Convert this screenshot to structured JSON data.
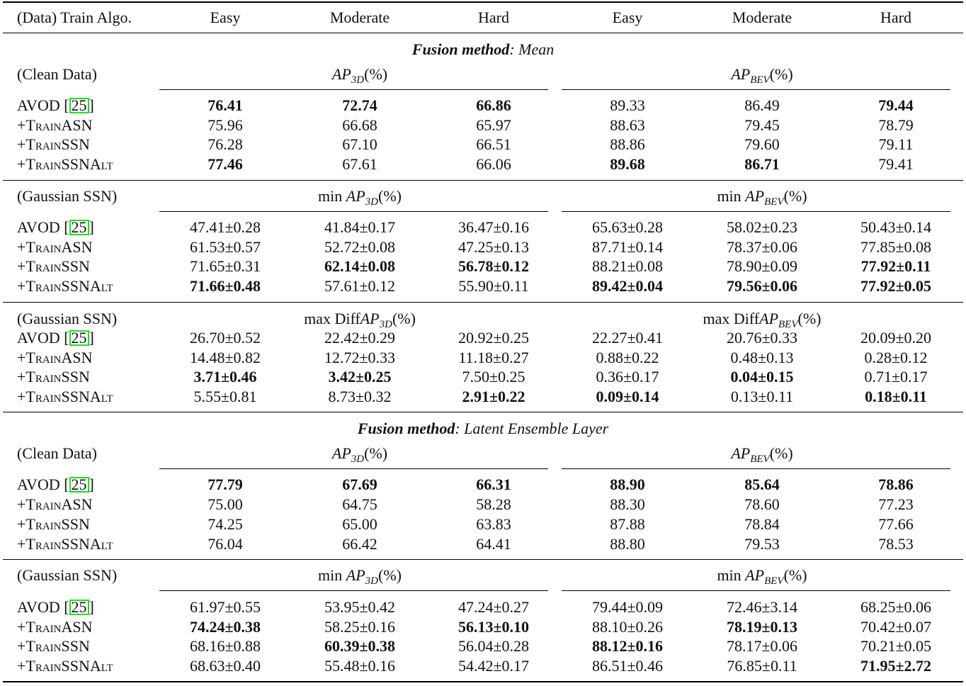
{
  "header": {
    "first_col": "(Data) Train Algo.",
    "columns": [
      "Easy",
      "Moderate",
      "Hard",
      "Easy",
      "Moderate",
      "Hard"
    ]
  },
  "sections": [
    {
      "fusion_label": "Fusion method",
      "fusion_value": ": Mean",
      "blocks": [
        {
          "block_label": "(Clean Data)",
          "left_metric": {
            "prefix": "",
            "name": "AP",
            "sub": "3D",
            "suffix": "(%)"
          },
          "right_metric": {
            "prefix": "",
            "name": "AP",
            "sub": "BEV",
            "suffix": "(%)"
          },
          "rows": [
            {
              "method": "AVOD",
              "cite": "25",
              "sc": false,
              "cells": [
                [
                  "76.41",
                  1
                ],
                [
                  "72.74",
                  1
                ],
                [
                  "66.86",
                  1
                ],
                [
                  "89.33",
                  0
                ],
                [
                  "86.49",
                  0
                ],
                [
                  "79.44",
                  1
                ]
              ]
            },
            {
              "method": "+TrainASN",
              "cite": "",
              "sc": true,
              "cells": [
                [
                  "75.96",
                  0
                ],
                [
                  "66.68",
                  0
                ],
                [
                  "65.97",
                  0
                ],
                [
                  "88.63",
                  0
                ],
                [
                  "79.45",
                  0
                ],
                [
                  "78.79",
                  0
                ]
              ]
            },
            {
              "method": "+TrainSSN",
              "cite": "",
              "sc": true,
              "cells": [
                [
                  "76.28",
                  0
                ],
                [
                  "67.10",
                  0
                ],
                [
                  "66.51",
                  0
                ],
                [
                  "88.86",
                  0
                ],
                [
                  "79.60",
                  0
                ],
                [
                  "79.11",
                  0
                ]
              ]
            },
            {
              "method": "+TrainSSNAlt",
              "cite": "",
              "sc": true,
              "cells": [
                [
                  "77.46",
                  1
                ],
                [
                  "67.61",
                  0
                ],
                [
                  "66.06",
                  0
                ],
                [
                  "89.68",
                  1
                ],
                [
                  "86.71",
                  1
                ],
                [
                  "79.41",
                  0
                ]
              ]
            }
          ]
        },
        {
          "block_label": "(Gaussian SSN)",
          "left_metric": {
            "prefix": "min ",
            "name": "AP",
            "sub": "3D",
            "suffix": "(%)"
          },
          "right_metric": {
            "prefix": "min ",
            "name": "AP",
            "sub": "BEV",
            "suffix": "(%)"
          },
          "rows": [
            {
              "method": "AVOD",
              "cite": "25",
              "sc": false,
              "cells": [
                [
                  "47.41±0.28",
                  0
                ],
                [
                  "41.84±0.17",
                  0
                ],
                [
                  "36.47±0.16",
                  0
                ],
                [
                  "65.63±0.28",
                  0
                ],
                [
                  "58.02±0.23",
                  0
                ],
                [
                  "50.43±0.14",
                  0
                ]
              ]
            },
            {
              "method": "+TrainASN",
              "cite": "",
              "sc": true,
              "cells": [
                [
                  "61.53±0.57",
                  0
                ],
                [
                  "52.72±0.08",
                  0
                ],
                [
                  "47.25±0.13",
                  0
                ],
                [
                  "87.71±0.14",
                  0
                ],
                [
                  "78.37±0.06",
                  0
                ],
                [
                  "77.85±0.08",
                  0
                ]
              ]
            },
            {
              "method": "+TrainSSN",
              "cite": "",
              "sc": true,
              "cells": [
                [
                  "71.65±0.31",
                  0
                ],
                [
                  "62.14±0.08",
                  1
                ],
                [
                  "56.78±0.12",
                  1
                ],
                [
                  "88.21±0.08",
                  0
                ],
                [
                  "78.90±0.09",
                  0
                ],
                [
                  "77.92±0.11",
                  1
                ]
              ]
            },
            {
              "method": "+TrainSSNAlt",
              "cite": "",
              "sc": true,
              "cells": [
                [
                  "71.66±0.48",
                  1
                ],
                [
                  "57.61±0.12",
                  0
                ],
                [
                  "55.90±0.11",
                  0
                ],
                [
                  "89.42±0.04",
                  1
                ],
                [
                  "79.56±0.06",
                  1
                ],
                [
                  "77.92±0.05",
                  1
                ]
              ]
            }
          ]
        },
        {
          "block_label": "(Gaussian SSN)",
          "left_metric": {
            "prefix": "max Diff",
            "name": "AP",
            "sub": "3D",
            "suffix": "(%)"
          },
          "right_metric": {
            "prefix": "max Diff",
            "name": "AP",
            "sub": "BEV",
            "suffix": "(%)"
          },
          "rows": [
            {
              "method": "AVOD",
              "cite": "25",
              "sc": false,
              "cells": [
                [
                  "26.70±0.52",
                  0
                ],
                [
                  "22.42±0.29",
                  0
                ],
                [
                  "20.92±0.25",
                  0
                ],
                [
                  "22.27±0.41",
                  0
                ],
                [
                  "20.76±0.33",
                  0
                ],
                [
                  "20.09±0.20",
                  0
                ]
              ]
            },
            {
              "method": "+TrainASN",
              "cite": "",
              "sc": true,
              "cells": [
                [
                  "14.48±0.82",
                  0
                ],
                [
                  "12.72±0.33",
                  0
                ],
                [
                  "11.18±0.27",
                  0
                ],
                [
                  "0.88±0.22",
                  0
                ],
                [
                  "0.48±0.13",
                  0
                ],
                [
                  "0.28±0.12",
                  0
                ]
              ]
            },
            {
              "method": "+TrainSSN",
              "cite": "",
              "sc": true,
              "cells": [
                [
                  "3.71±0.46",
                  1
                ],
                [
                  "3.42±0.25",
                  1
                ],
                [
                  "7.50±0.25",
                  0
                ],
                [
                  "0.36±0.17",
                  0
                ],
                [
                  "0.04±0.15",
                  1
                ],
                [
                  "0.71±0.17",
                  0
                ]
              ]
            },
            {
              "method": "+TrainSSNAlt",
              "cite": "",
              "sc": true,
              "cells": [
                [
                  "5.55±0.81",
                  0
                ],
                [
                  "8.73±0.32",
                  0
                ],
                [
                  "2.91±0.22",
                  1
                ],
                [
                  "0.09±0.14",
                  1
                ],
                [
                  "0.13±0.11",
                  0
                ],
                [
                  "0.18±0.11",
                  1
                ]
              ]
            }
          ]
        }
      ]
    },
    {
      "fusion_label": "Fusion method",
      "fusion_value": ": Latent Ensemble Layer",
      "blocks": [
        {
          "block_label": "(Clean Data)",
          "left_metric": {
            "prefix": "",
            "name": "AP",
            "sub": "3D",
            "suffix": "(%)"
          },
          "right_metric": {
            "prefix": "",
            "name": "AP",
            "sub": "BEV",
            "suffix": "(%)"
          },
          "rows": [
            {
              "method": "AVOD",
              "cite": "25",
              "sc": false,
              "cells": [
                [
                  "77.79",
                  1
                ],
                [
                  "67.69",
                  1
                ],
                [
                  "66.31",
                  1
                ],
                [
                  "88.90",
                  1
                ],
                [
                  "85.64",
                  1
                ],
                [
                  "78.86",
                  1
                ]
              ]
            },
            {
              "method": "+TrainASN",
              "cite": "",
              "sc": true,
              "cells": [
                [
                  "75.00",
                  0
                ],
                [
                  "64.75",
                  0
                ],
                [
                  "58.28",
                  0
                ],
                [
                  "88.30",
                  0
                ],
                [
                  "78.60",
                  0
                ],
                [
                  "77.23",
                  0
                ]
              ]
            },
            {
              "method": "+TrainSSN",
              "cite": "",
              "sc": true,
              "cells": [
                [
                  "74.25",
                  0
                ],
                [
                  "65.00",
                  0
                ],
                [
                  "63.83",
                  0
                ],
                [
                  "87.88",
                  0
                ],
                [
                  "78.84",
                  0
                ],
                [
                  "77.66",
                  0
                ]
              ]
            },
            {
              "method": "+TrainSSNAlt",
              "cite": "",
              "sc": true,
              "cells": [
                [
                  "76.04",
                  0
                ],
                [
                  "66.42",
                  0
                ],
                [
                  "64.41",
                  0
                ],
                [
                  "88.80",
                  0
                ],
                [
                  "79.53",
                  0
                ],
                [
                  "78.53",
                  0
                ]
              ]
            }
          ]
        },
        {
          "block_label": "(Gaussian SSN)",
          "left_metric": {
            "prefix": "min ",
            "name": "AP",
            "sub": "3D",
            "suffix": "(%)"
          },
          "right_metric": {
            "prefix": "min ",
            "name": "AP",
            "sub": "BEV",
            "suffix": "(%)"
          },
          "rows": [
            {
              "method": "AVOD",
              "cite": "25",
              "sc": false,
              "cells": [
                [
                  "61.97±0.55",
                  0
                ],
                [
                  "53.95±0.42",
                  0
                ],
                [
                  "47.24±0.27",
                  0
                ],
                [
                  "79.44±0.09",
                  0
                ],
                [
                  "72.46±3.14",
                  0
                ],
                [
                  "68.25±0.06",
                  0
                ]
              ]
            },
            {
              "method": "+TrainASN",
              "cite": "",
              "sc": true,
              "cells": [
                [
                  "74.24±0.38",
                  1
                ],
                [
                  "58.25±0.16",
                  0
                ],
                [
                  "56.13±0.10",
                  1
                ],
                [
                  "88.10±0.26",
                  0
                ],
                [
                  "78.19±0.13",
                  1
                ],
                [
                  "70.42±0.07",
                  0
                ]
              ]
            },
            {
              "method": "+TrainSSN",
              "cite": "",
              "sc": true,
              "cells": [
                [
                  "68.16±0.88",
                  0
                ],
                [
                  "60.39±0.38",
                  1
                ],
                [
                  "56.04±0.28",
                  0
                ],
                [
                  "88.12±0.16",
                  1
                ],
                [
                  "78.17±0.06",
                  0
                ],
                [
                  "70.21±0.05",
                  0
                ]
              ]
            },
            {
              "method": "+TrainSSNAlt",
              "cite": "",
              "sc": true,
              "cells": [
                [
                  "68.63±0.40",
                  0
                ],
                [
                  "55.48±0.16",
                  0
                ],
                [
                  "54.42±0.17",
                  0
                ],
                [
                  "86.51±0.46",
                  0
                ],
                [
                  "76.85±0.11",
                  0
                ],
                [
                  "71.95±2.72",
                  1
                ]
              ]
            }
          ]
        }
      ]
    }
  ]
}
